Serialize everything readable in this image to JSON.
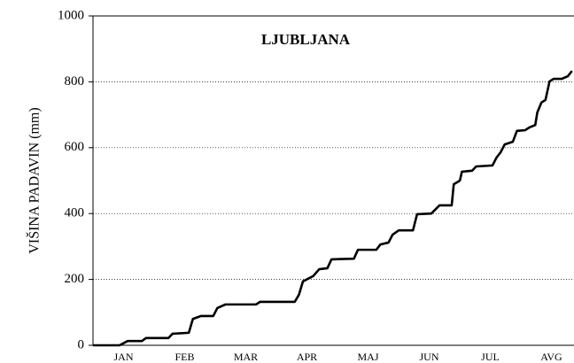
{
  "chart_data": {
    "type": "line",
    "title": "LJUBLJANA",
    "y_label": "VIŠINA PADAVIN (mm)",
    "categories": [
      "JAN",
      "FEB",
      "MAR",
      "APR",
      "MAJ",
      "JUN",
      "JUL",
      "AVG"
    ],
    "xlim": [
      0,
      236
    ],
    "ylim": [
      0,
      1000
    ],
    "yticks": [
      0,
      200,
      400,
      600,
      800,
      1000
    ],
    "grid": true,
    "series": [
      {
        "color": "#000000",
        "x": [
          0,
          13,
          17,
          24,
          26,
          37,
          39,
          47,
          49,
          53,
          59,
          61,
          65,
          80,
          82,
          99,
          101,
          103,
          108,
          111,
          115,
          117,
          128,
          130,
          139,
          141,
          145,
          147,
          150,
          157,
          159,
          166,
          170,
          176,
          177,
          180,
          181,
          186,
          188,
          196,
          198,
          200,
          202,
          206,
          208,
          212,
          214,
          217,
          218,
          220,
          222,
          224,
          226,
          230,
          233,
          235
        ],
        "values": [
          0,
          0,
          13,
          13,
          22,
          22,
          35,
          38,
          80,
          89,
          89,
          113,
          124,
          124,
          132,
          132,
          153,
          194,
          210,
          231,
          234,
          261,
          263,
          290,
          290,
          306,
          312,
          336,
          349,
          349,
          398,
          400,
          425,
          425,
          489,
          500,
          527,
          530,
          543,
          546,
          570,
          586,
          610,
          618,
          651,
          653,
          661,
          669,
          707,
          737,
          745,
          801,
          809,
          809,
          817,
          833
        ]
      }
    ]
  }
}
